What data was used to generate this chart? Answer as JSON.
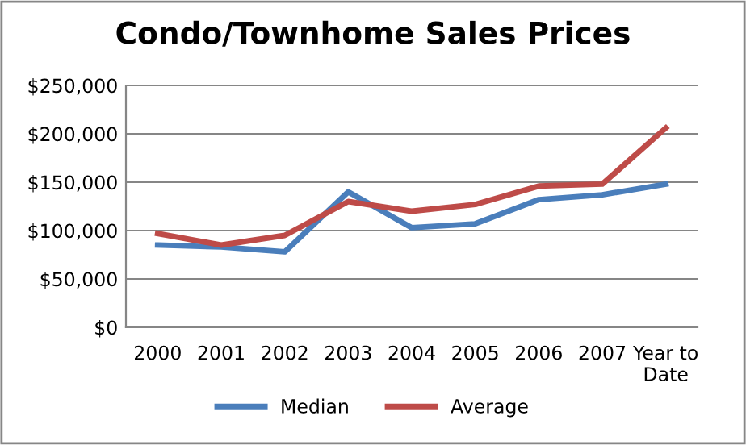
{
  "chart_data": {
    "type": "line",
    "title": "Condo/Townhome Sales Prices",
    "categories": [
      "2000",
      "2001",
      "2002",
      "2003",
      "2004",
      "2005",
      "2006",
      "2007",
      "Year to\nDate"
    ],
    "series": [
      {
        "name": "Median",
        "color": "#4a7ebb",
        "values": [
          85000,
          83000,
          78000,
          140000,
          103000,
          107000,
          132000,
          137000,
          148000
        ]
      },
      {
        "name": "Average",
        "color": "#be4b48",
        "values": [
          97000,
          85000,
          95000,
          130000,
          120000,
          127000,
          146000,
          148000,
          206000
        ]
      }
    ],
    "ylim": [
      0,
      250000
    ],
    "yticks": [
      {
        "value": 0,
        "label": "$0"
      },
      {
        "value": 50000,
        "label": "$50,000"
      },
      {
        "value": 100000,
        "label": "$100,000"
      },
      {
        "value": 150000,
        "label": "$150,000"
      },
      {
        "value": 200000,
        "label": "$200,000"
      },
      {
        "value": 250000,
        "label": "$250,000"
      }
    ],
    "grid": "y",
    "legend": "bottom",
    "marker": "none",
    "line_style": "solid"
  }
}
